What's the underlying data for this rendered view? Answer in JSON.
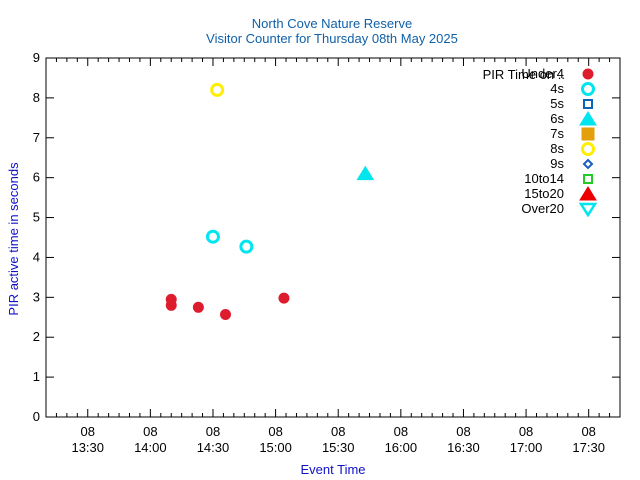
{
  "chart_data": {
    "type": "scatter",
    "title": "North Cove Nature Reserve",
    "subtitle": "Visitor Counter for Thursday 08th May 2025",
    "xlabel": "Event Time",
    "ylabel": "PIR active time in seconds",
    "x_tick_labels": [
      {
        "day": "08",
        "time": "13:30"
      },
      {
        "day": "08",
        "time": "14:00"
      },
      {
        "day": "08",
        "time": "14:30"
      },
      {
        "day": "08",
        "time": "15:00"
      },
      {
        "day": "08",
        "time": "15:30"
      },
      {
        "day": "08",
        "time": "16:00"
      },
      {
        "day": "08",
        "time": "16:30"
      },
      {
        "day": "08",
        "time": "17:00"
      },
      {
        "day": "08",
        "time": "17:30"
      }
    ],
    "xlim": [
      "2025-05-08 13:10",
      "2025-05-08 17:45"
    ],
    "ylim": [
      0,
      9
    ],
    "y_ticks": [
      0,
      1,
      2,
      3,
      4,
      5,
      6,
      7,
      8,
      9
    ],
    "legend_position": "top-right",
    "legend_title": "PIR Time on ..",
    "grid": false,
    "series": [
      {
        "name": "Under4",
        "marker": "circle-filled",
        "color": "#dd1c2e",
        "points": [
          {
            "x": "2025-05-08 14:10",
            "y": 2.95
          },
          {
            "x": "2025-05-08 14:10",
            "y": 2.8
          },
          {
            "x": "2025-05-08 14:23",
            "y": 2.75
          },
          {
            "x": "2025-05-08 14:36",
            "y": 2.57
          },
          {
            "x": "2025-05-08 15:04",
            "y": 2.98
          }
        ]
      },
      {
        "name": "4s",
        "marker": "circle-open",
        "color": "#00e5ee",
        "points": [
          {
            "x": "2025-05-08 14:30",
            "y": 4.52
          },
          {
            "x": "2025-05-08 14:46",
            "y": 4.27
          }
        ]
      },
      {
        "name": "5s",
        "marker": "square-open",
        "color": "#0b64b6",
        "points": []
      },
      {
        "name": "6s",
        "marker": "triangle-up-filled",
        "color": "#00e5ee",
        "points": [
          {
            "x": "2025-05-08 15:43",
            "y": 6.1
          }
        ]
      },
      {
        "name": "7s",
        "marker": "square-filled",
        "color": "#e3a00a",
        "points": []
      },
      {
        "name": "8s",
        "marker": "circle-open",
        "color": "#ffee00",
        "points": [
          {
            "x": "2025-05-08 14:32",
            "y": 8.2
          }
        ]
      },
      {
        "name": "9s",
        "marker": "diamond-open",
        "color": "#1a60c0",
        "points": []
      },
      {
        "name": "10to14",
        "marker": "square-open",
        "color": "#22cc22",
        "points": []
      },
      {
        "name": "15to20",
        "marker": "triangle-up-filled",
        "color": "#ee0000",
        "points": []
      },
      {
        "name": "Over20",
        "marker": "triangle-down-open",
        "color": "#00e5ee",
        "points": []
      }
    ]
  }
}
